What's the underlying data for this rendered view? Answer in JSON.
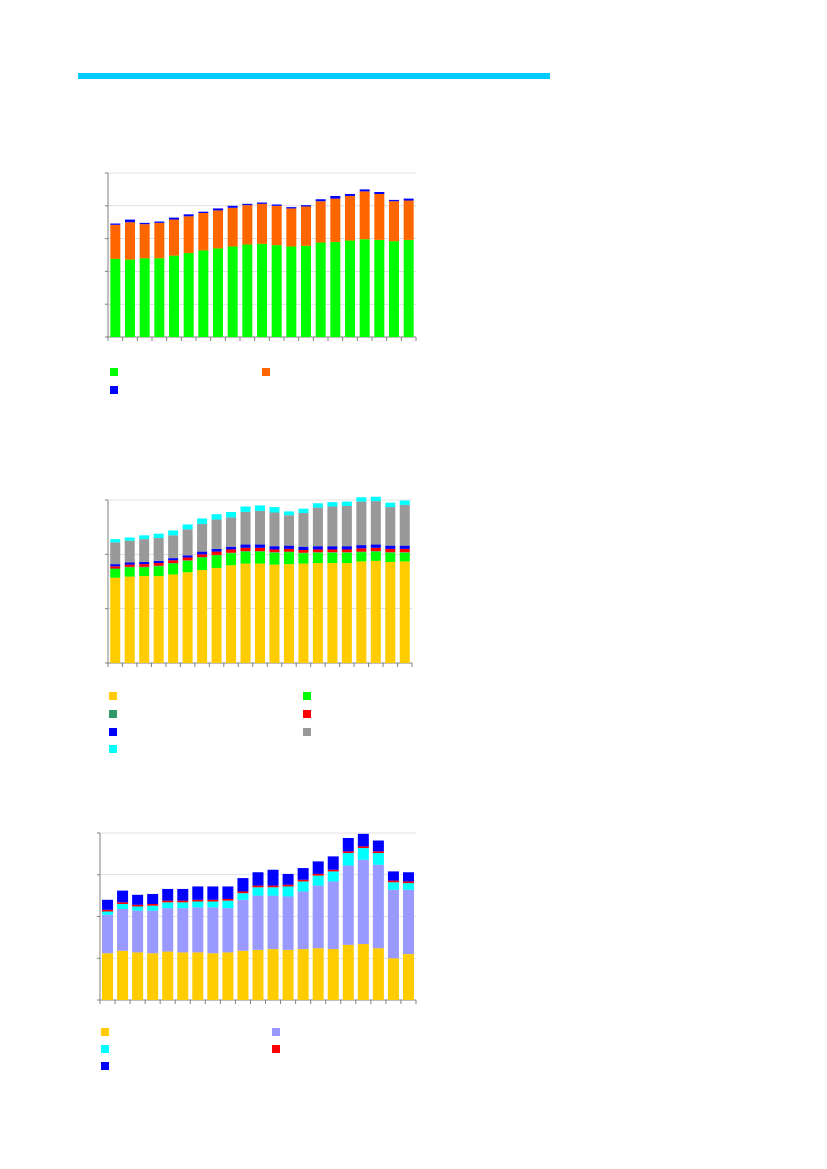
{
  "header": {
    "rule_color": "#00ccff"
  },
  "chart_data": [
    {
      "type": "bar",
      "stacked": true,
      "categories": [
        "",
        "",
        "",
        "",
        "",
        "",
        "",
        "",
        "",
        "",
        "",
        "",
        "",
        "",
        "",
        "",
        "",
        "",
        "",
        "",
        ""
      ],
      "ylim": [
        0,
        500
      ],
      "grid": "horizontal",
      "legend": "bottom",
      "series": [
        {
          "name": "",
          "color": "#00ff00",
          "values": [
            238,
            236,
            240,
            240,
            248,
            256,
            264,
            270,
            276,
            282,
            284,
            280,
            276,
            278,
            288,
            290,
            294,
            298,
            296,
            292,
            296
          ]
        },
        {
          "name": "",
          "color": "#ff6600",
          "values": [
            104,
            114,
            104,
            108,
            110,
            112,
            114,
            116,
            118,
            120,
            122,
            120,
            116,
            120,
            126,
            132,
            136,
            146,
            140,
            122,
            120
          ]
        },
        {
          "name": "",
          "color": "#0000ff",
          "values": [
            4,
            8,
            4,
            4,
            6,
            6,
            4,
            6,
            6,
            4,
            4,
            4,
            4,
            4,
            6,
            8,
            6,
            6,
            6,
            4,
            6
          ]
        }
      ]
    },
    {
      "type": "bar",
      "stacked": true,
      "categories": [
        "",
        "",
        "",
        "",
        "",
        "",
        "",
        "",
        "",
        "",
        "",
        "",
        "",
        "",
        "",
        "",
        "",
        "",
        "",
        "",
        ""
      ],
      "ylim": [
        0,
        1500
      ],
      "grid": "horizontal",
      "legend": "bottom",
      "series": [
        {
          "name": "",
          "color": "#ffcc00",
          "values": [
            785,
            795,
            800,
            800,
            815,
            835,
            855,
            875,
            900,
            915,
            915,
            905,
            910,
            915,
            920,
            920,
            920,
            935,
            940,
            930,
            935
          ]
        },
        {
          "name": "",
          "color": "#00ff00",
          "values": [
            80,
            85,
            80,
            90,
            100,
            105,
            115,
            115,
            110,
            110,
            110,
            110,
            110,
            95,
            95,
            95,
            95,
            85,
            85,
            85,
            80
          ]
        },
        {
          "name": "",
          "color": "#339966",
          "values": [
            5,
            5,
            5,
            5,
            5,
            5,
            5,
            5,
            5,
            5,
            5,
            5,
            5,
            5,
            5,
            5,
            5,
            5,
            5,
            5,
            5
          ]
        },
        {
          "name": "",
          "color": "#ff0000",
          "values": [
            20,
            20,
            25,
            25,
            25,
            25,
            25,
            30,
            30,
            30,
            30,
            25,
            25,
            25,
            25,
            25,
            25,
            30,
            30,
            30,
            30
          ]
        },
        {
          "name": "",
          "color": "#0000ff",
          "values": [
            20,
            20,
            20,
            20,
            20,
            20,
            25,
            25,
            25,
            30,
            30,
            30,
            30,
            30,
            30,
            30,
            30,
            30,
            30,
            30,
            30
          ]
        },
        {
          "name": "",
          "color": "#999999",
          "values": [
            200,
            200,
            210,
            210,
            210,
            240,
            255,
            270,
            270,
            300,
            310,
            310,
            280,
            310,
            355,
            365,
            370,
            400,
            400,
            355,
            375
          ]
        },
        {
          "name": "",
          "color": "#00ffff",
          "values": [
            30,
            30,
            35,
            40,
            45,
            45,
            50,
            50,
            50,
            50,
            50,
            50,
            35,
            40,
            40,
            40,
            40,
            40,
            40,
            40,
            40
          ]
        }
      ]
    },
    {
      "type": "bar",
      "stacked": true,
      "categories": [
        "",
        "",
        "",
        "",
        "",
        "",
        "",
        "",
        "",
        "",
        "",
        "",
        "",
        "",
        "",
        "",
        "",
        "",
        "",
        "",
        ""
      ],
      "ylim": [
        0,
        2000
      ],
      "grid": "horizontal",
      "legend": "bottom",
      "series": [
        {
          "name": "",
          "color": "#ffcc00",
          "values": [
            560,
            590,
            570,
            560,
            580,
            570,
            570,
            560,
            570,
            590,
            600,
            610,
            600,
            610,
            620,
            610,
            660,
            670,
            620,
            500,
            550
          ]
        },
        {
          "name": "",
          "color": "#9999ff",
          "values": [
            460,
            500,
            500,
            510,
            520,
            530,
            540,
            550,
            530,
            610,
            650,
            640,
            640,
            690,
            750,
            810,
            950,
            1010,
            1000,
            820,
            770
          ]
        },
        {
          "name": "",
          "color": "#00ffff",
          "values": [
            40,
            60,
            50,
            60,
            70,
            70,
            70,
            70,
            90,
            80,
            100,
            100,
            120,
            120,
            120,
            120,
            150,
            140,
            140,
            90,
            80
          ]
        },
        {
          "name": "",
          "color": "#ff0000",
          "values": [
            20,
            20,
            20,
            20,
            20,
            20,
            20,
            20,
            20,
            20,
            20,
            20,
            20,
            20,
            20,
            20,
            20,
            20,
            20,
            20,
            20
          ]
        },
        {
          "name": "",
          "color": "#0000ff",
          "values": [
            120,
            140,
            120,
            120,
            140,
            140,
            160,
            160,
            150,
            160,
            160,
            190,
            130,
            140,
            150,
            160,
            160,
            150,
            130,
            110,
            110
          ]
        }
      ]
    }
  ]
}
